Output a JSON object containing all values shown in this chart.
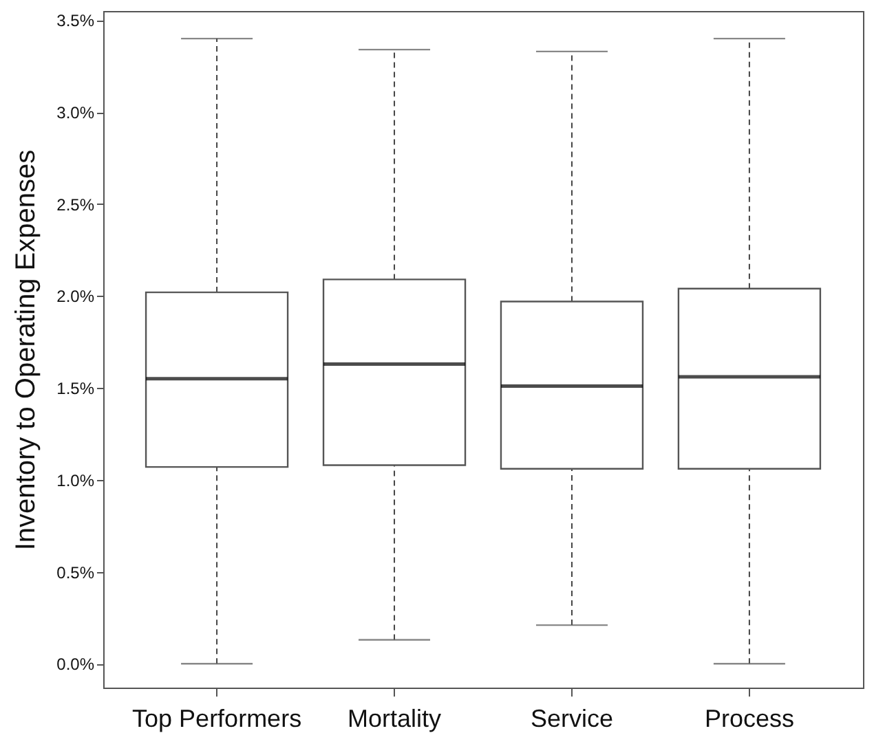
{
  "chart_data": {
    "type": "box",
    "ylabel": "Inventory to Operating Expenses",
    "categories": [
      "Top Performers",
      "Mortality",
      "Service",
      "Process"
    ],
    "boxes": [
      {
        "low": 0,
        "q1": 1.07,
        "median": 1.55,
        "q3": 2.02,
        "high": 3.4
      },
      {
        "low": 0.13,
        "q1": 1.08,
        "median": 1.63,
        "q3": 2.09,
        "high": 3.34
      },
      {
        "low": 0.21,
        "q1": 1.06,
        "median": 1.51,
        "q3": 1.97,
        "high": 3.33
      },
      {
        "low": 0,
        "q1": 1.06,
        "median": 1.56,
        "q3": 2.04,
        "high": 3.4
      }
    ],
    "ylim": [
      -0.13,
      3.55
    ],
    "yticks": [
      {
        "value": 0,
        "label": "0.0%"
      },
      {
        "value": 0.5,
        "label": "0.5%"
      },
      {
        "value": 1,
        "label": "1.0%"
      },
      {
        "value": 1.5,
        "label": "1.5%"
      },
      {
        "value": 2,
        "label": "2.0%"
      },
      {
        "value": 2.5,
        "label": "2.5%"
      },
      {
        "value": 3,
        "label": "3.0%"
      },
      {
        "value": 3.5,
        "label": "3.5%"
      }
    ]
  }
}
